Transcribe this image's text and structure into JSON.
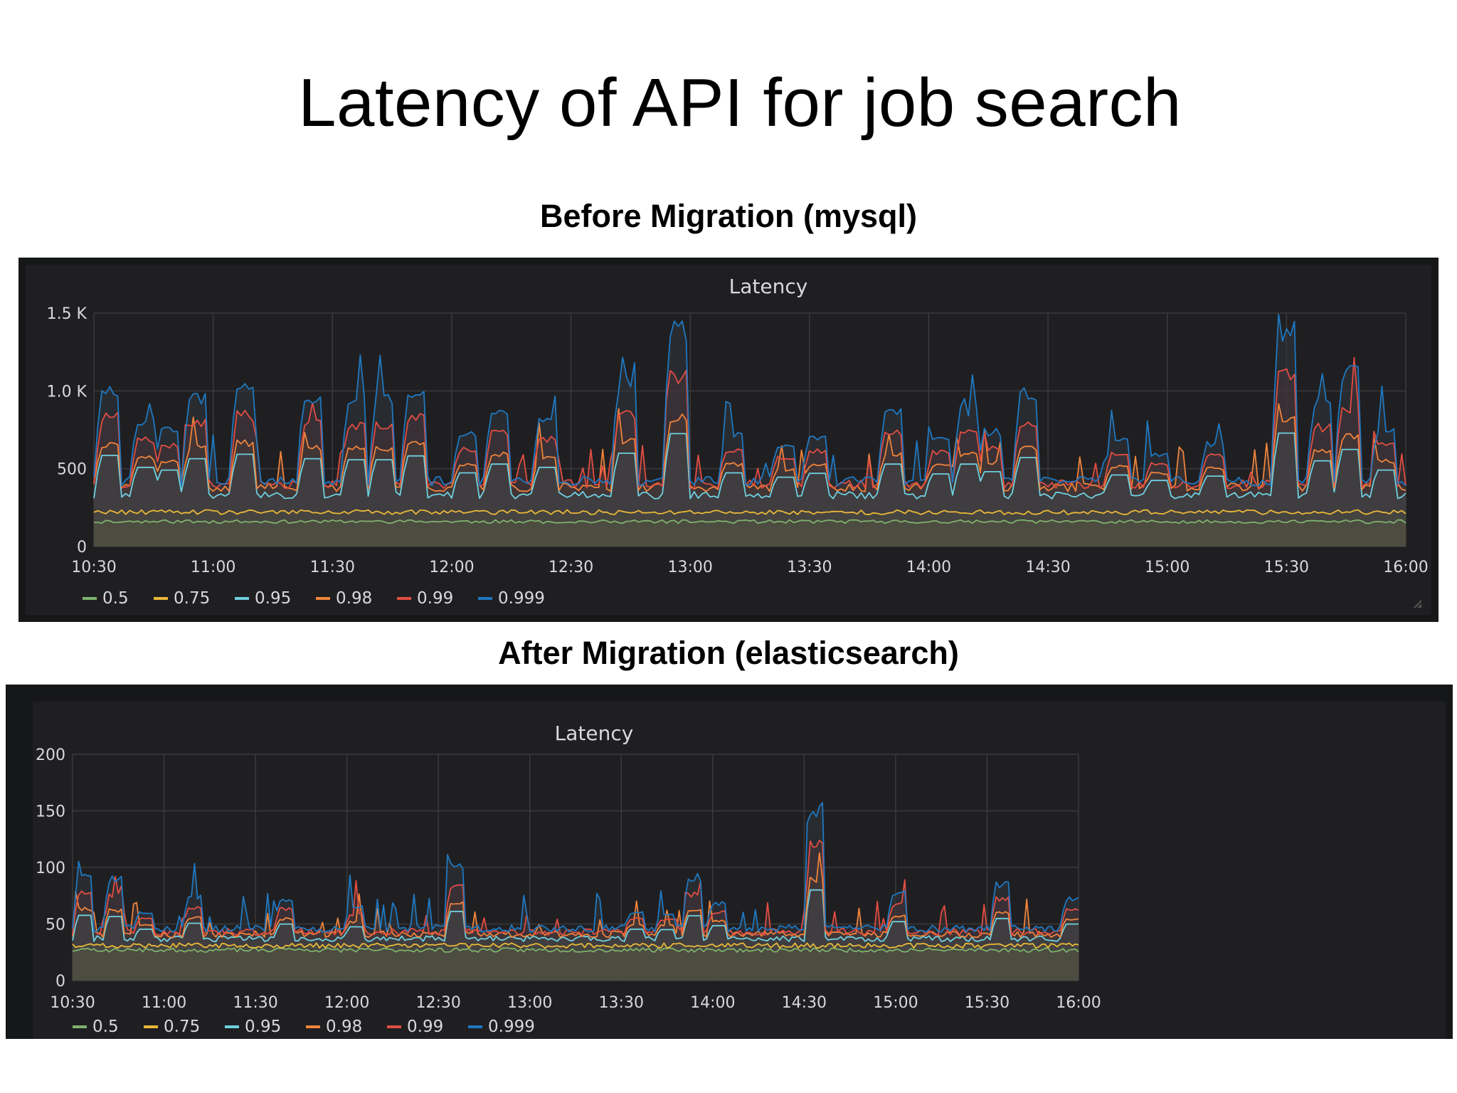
{
  "slide": {
    "title": "Latency of API for job search",
    "before_heading": "Before Migration (mysql)",
    "after_heading": "After Migration (elasticsearch)"
  },
  "colors": {
    "panel_bg": "#1f1f21",
    "frame_bg": "#161719",
    "grid": "#3a3a3c",
    "text": "#d8d9da",
    "fill": "#5a5140"
  },
  "chart_data": [
    {
      "type": "line",
      "title": "Latency",
      "x_ticks": [
        "10:30",
        "11:00",
        "11:30",
        "12:00",
        "12:30",
        "13:00",
        "13:30",
        "14:00",
        "14:30",
        "15:00",
        "15:30",
        "16:00"
      ],
      "y_ticks": [
        "0",
        "500",
        "1.0 K",
        "1.5 K"
      ],
      "ylim": [
        0,
        1500
      ],
      "xlim": [
        "10:30",
        "16:00"
      ],
      "grid": true,
      "legend_position": "bottom-left",
      "legend": [
        {
          "name": "0.5",
          "color": "#7eb26d"
        },
        {
          "name": "0.75",
          "color": "#eab839"
        },
        {
          "name": "0.95",
          "color": "#6ed0e0"
        },
        {
          "name": "0.98",
          "color": "#ef843c"
        },
        {
          "name": "0.99",
          "color": "#e24d42"
        },
        {
          "name": "0.999",
          "color": "#1f78c1"
        }
      ],
      "series_levels": {
        "0.5": 160,
        "0.75": 220,
        "0.95": 330,
        "0.98": 380,
        "0.99": 400,
        "0.999": 420
      },
      "spikes_0999": [
        {
          "time": "10:32",
          "value": 1060
        },
        {
          "time": "10:41",
          "value": 840
        },
        {
          "time": "10:47",
          "value": 790
        },
        {
          "time": "10:54",
          "value": 1000
        },
        {
          "time": "11:06",
          "value": 1080
        },
        {
          "time": "11:23",
          "value": 1000
        },
        {
          "time": "11:34",
          "value": 980
        },
        {
          "time": "11:41",
          "value": 980
        },
        {
          "time": "11:49",
          "value": 1050
        },
        {
          "time": "12:02",
          "value": 740
        },
        {
          "time": "12:10",
          "value": 900
        },
        {
          "time": "12:22",
          "value": 840
        },
        {
          "time": "12:42",
          "value": 1100
        },
        {
          "time": "12:55",
          "value": 1460
        },
        {
          "time": "13:09",
          "value": 740
        },
        {
          "time": "13:22",
          "value": 660
        },
        {
          "time": "13:30",
          "value": 730
        },
        {
          "time": "13:49",
          "value": 900
        },
        {
          "time": "14:01",
          "value": 720
        },
        {
          "time": "14:08",
          "value": 900
        },
        {
          "time": "14:14",
          "value": 760
        },
        {
          "time": "14:23",
          "value": 1020
        },
        {
          "time": "14:46",
          "value": 700
        },
        {
          "time": "14:56",
          "value": 600
        },
        {
          "time": "15:10",
          "value": 680
        },
        {
          "time": "15:28",
          "value": 1470
        },
        {
          "time": "15:37",
          "value": 960
        },
        {
          "time": "15:44",
          "value": 1170
        },
        {
          "time": "15:53",
          "value": 790
        }
      ]
    },
    {
      "type": "line",
      "title": "Latency",
      "x_ticks": [
        "10:30",
        "11:00",
        "11:30",
        "12:00",
        "12:30",
        "13:00",
        "13:30",
        "14:00",
        "14:30",
        "15:00",
        "15:30",
        "16:00"
      ],
      "y_ticks": [
        "0",
        "50",
        "100",
        "150",
        "200"
      ],
      "ylim": [
        0,
        200
      ],
      "xlim": [
        "10:30",
        "16:00"
      ],
      "grid": true,
      "legend_position": "bottom-left",
      "legend": [
        {
          "name": "0.5",
          "color": "#7eb26d"
        },
        {
          "name": "0.75",
          "color": "#eab839"
        },
        {
          "name": "0.95",
          "color": "#6ed0e0"
        },
        {
          "name": "0.98",
          "color": "#ef843c"
        },
        {
          "name": "0.99",
          "color": "#e24d42"
        },
        {
          "name": "0.999",
          "color": "#1f78c1"
        }
      ],
      "series_levels": {
        "0.5": 27,
        "0.75": 31,
        "0.95": 37,
        "0.98": 41,
        "0.99": 43,
        "0.999": 46
      },
      "spikes_0999": [
        {
          "time": "10:32",
          "value": 96
        },
        {
          "time": "10:42",
          "value": 93
        },
        {
          "time": "10:52",
          "value": 61
        },
        {
          "time": "11:08",
          "value": 76
        },
        {
          "time": "11:38",
          "value": 74
        },
        {
          "time": "12:01",
          "value": 67
        },
        {
          "time": "12:34",
          "value": 106
        },
        {
          "time": "13:33",
          "value": 61
        },
        {
          "time": "13:43",
          "value": 60
        },
        {
          "time": "13:52",
          "value": 95
        },
        {
          "time": "14:00",
          "value": 70
        },
        {
          "time": "14:32",
          "value": 160
        },
        {
          "time": "14:59",
          "value": 80
        },
        {
          "time": "15:33",
          "value": 88
        },
        {
          "time": "15:56",
          "value": 74
        }
      ]
    }
  ]
}
